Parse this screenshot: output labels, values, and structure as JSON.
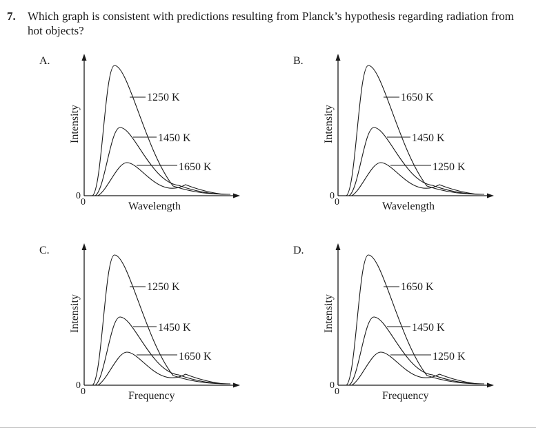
{
  "question": {
    "number": "7.",
    "text": "Which graph is consistent with predictions resulting from Planck’s hypothesis regarding radiation from hot objects?"
  },
  "panels": [
    {
      "id": "A",
      "letter": "A.",
      "ylabel": "Intensity",
      "xlabel": "Wavelength",
      "origin_x": "0",
      "origin_y": "0",
      "curve_labels": [
        "1250 K",
        "1450 K",
        "1650 K"
      ]
    },
    {
      "id": "B",
      "letter": "B.",
      "ylabel": "Intensity",
      "xlabel": "Wavelength",
      "origin_x": "0",
      "origin_y": "0",
      "curve_labels": [
        "1650 K",
        "1450 K",
        "1250 K"
      ]
    },
    {
      "id": "C",
      "letter": "C.",
      "ylabel": "Intensity",
      "xlabel": "Frequency",
      "origin_x": "0",
      "origin_y": "0",
      "curve_labels": [
        "1250 K",
        "1450 K",
        "1650 K"
      ]
    },
    {
      "id": "D",
      "letter": "D.",
      "ylabel": "Intensity",
      "xlabel": "Frequency",
      "origin_x": "0",
      "origin_y": "0",
      "curve_labels": [
        "1650 K",
        "1450 K",
        "1250 K"
      ]
    }
  ]
}
